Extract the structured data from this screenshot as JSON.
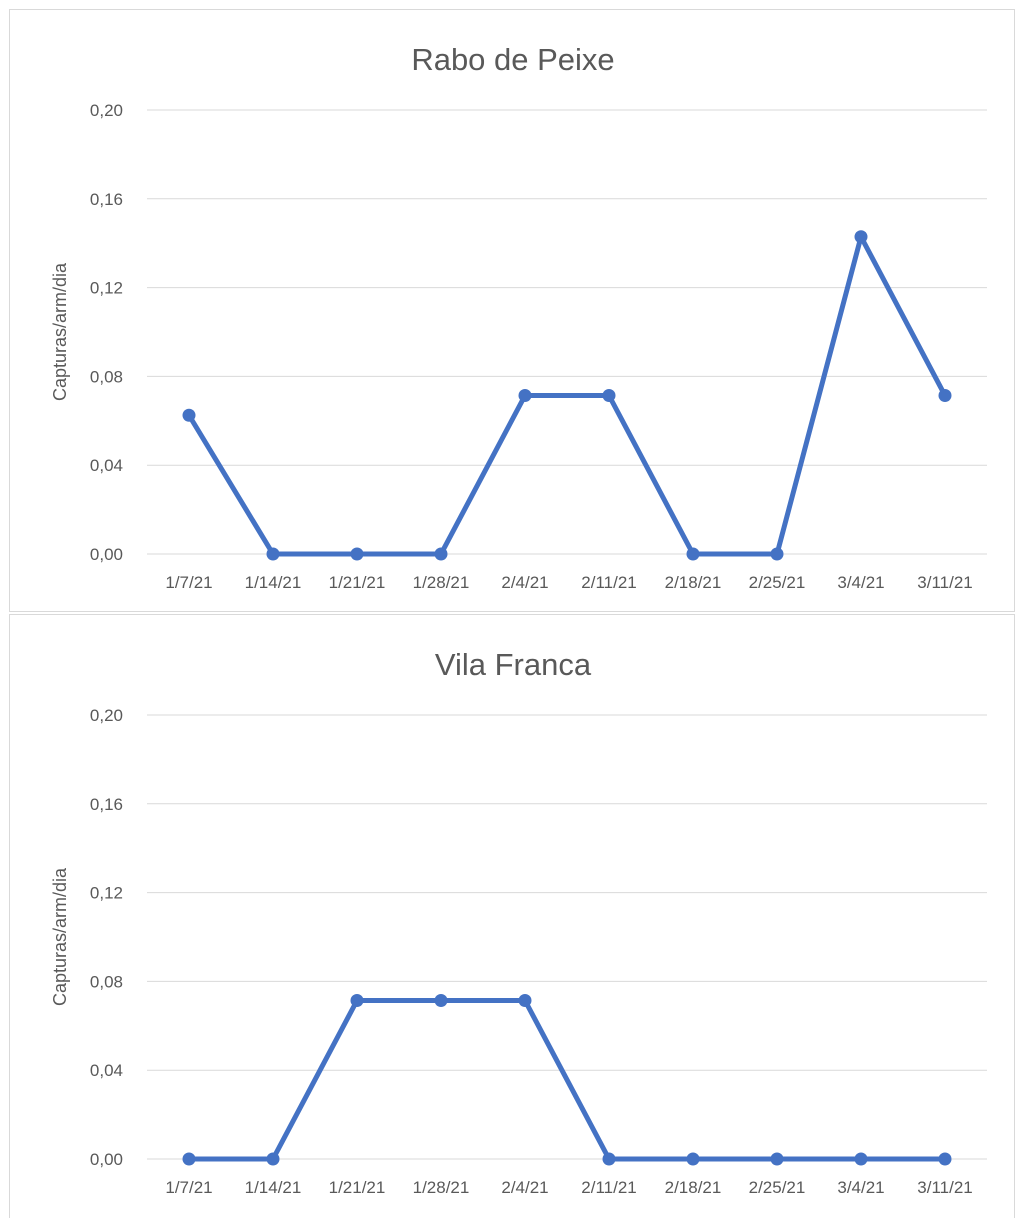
{
  "chart_data": [
    {
      "type": "line",
      "title": "Rabo de Peixe",
      "xlabel": "",
      "ylabel": "Capturas/arm/dia",
      "categories": [
        "1/7/21",
        "1/14/21",
        "1/21/21",
        "1/28/21",
        "2/4/21",
        "2/11/21",
        "2/18/21",
        "2/25/21",
        "3/4/21",
        "3/11/21"
      ],
      "y_ticks": [
        "0,00",
        "0,04",
        "0,08",
        "0,12",
        "0,16",
        "0,20"
      ],
      "ylim": [
        0,
        0.2
      ],
      "grid": true,
      "legend": "none",
      "series": [
        {
          "color": "#4472c4",
          "values": [
            0.0625,
            0,
            0,
            0,
            0.0714,
            0.0714,
            0,
            0,
            0.1429,
            0.0714
          ]
        }
      ]
    },
    {
      "type": "line",
      "title": "Vila Franca",
      "xlabel": "",
      "ylabel": "Capturas/arm/dia",
      "categories": [
        "1/7/21",
        "1/14/21",
        "1/21/21",
        "1/28/21",
        "2/4/21",
        "2/11/21",
        "2/18/21",
        "2/25/21",
        "3/4/21",
        "3/11/21"
      ],
      "y_ticks": [
        "0,00",
        "0,04",
        "0,08",
        "0,12",
        "0,16",
        "0,20"
      ],
      "ylim": [
        0,
        0.2
      ],
      "grid": true,
      "legend": "none",
      "series": [
        {
          "color": "#4472c4",
          "values": [
            0,
            0,
            0.0714,
            0.0714,
            0.0714,
            0,
            0,
            0,
            0,
            0
          ]
        }
      ]
    }
  ]
}
